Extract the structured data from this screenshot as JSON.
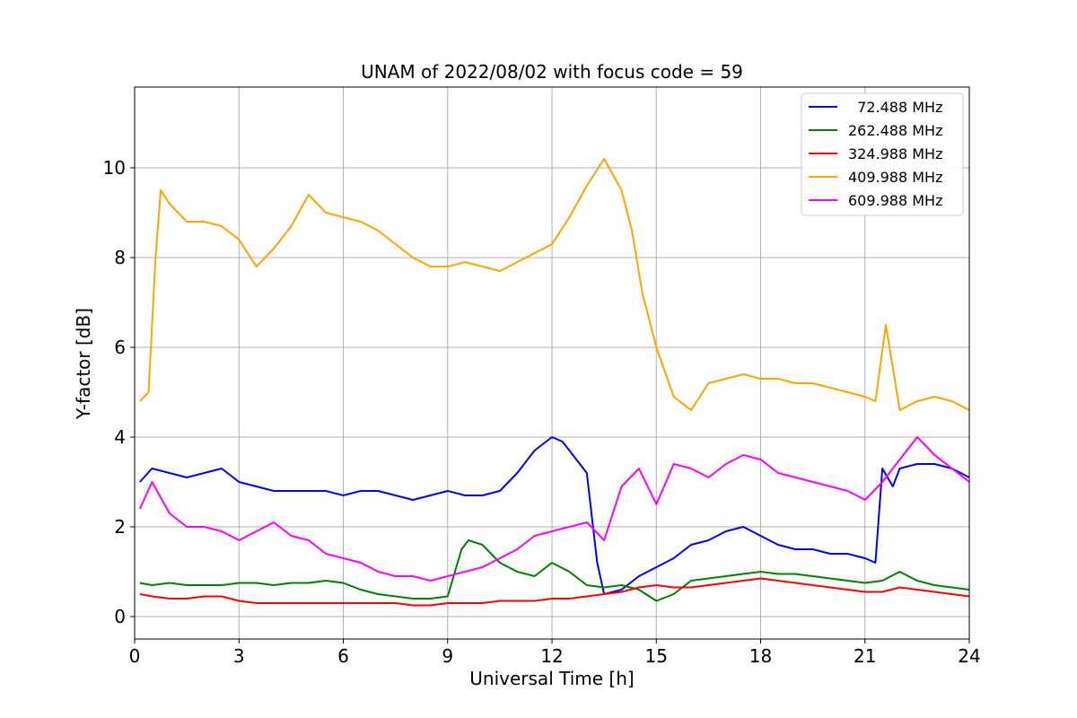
{
  "chart_data": {
    "type": "line",
    "title": "UNAM of 2022/08/02 with focus code = 59",
    "xlabel": "Universal Time [h]",
    "ylabel": "Y-factor [dB]",
    "xlim": [
      0,
      24
    ],
    "ylim": [
      -0.5,
      11.8
    ],
    "xticks": [
      0,
      3,
      6,
      9,
      12,
      15,
      18,
      21,
      24
    ],
    "yticks": [
      0,
      2,
      4,
      6,
      8,
      10
    ],
    "grid": true,
    "legend_position": "top-right",
    "series": [
      {
        "name": "  72.488 MHz",
        "color": "#0000ff",
        "x": [
          0.15,
          0.5,
          1,
          1.5,
          2,
          2.5,
          3,
          3.5,
          4,
          4.5,
          5,
          5.5,
          6,
          6.5,
          7,
          7.5,
          8,
          8.5,
          9,
          9.5,
          10,
          10.5,
          11,
          11.5,
          12,
          12.3,
          12.6,
          13,
          13.3,
          13.5,
          14,
          14.5,
          15,
          15.5,
          16,
          16.5,
          17,
          17.5,
          18,
          18.5,
          19,
          19.5,
          20,
          20.5,
          21,
          21.3,
          21.5,
          21.8,
          22,
          22.5,
          23,
          23.5,
          24
        ],
        "y": [
          3.0,
          3.3,
          3.2,
          3.1,
          3.2,
          3.3,
          3.0,
          2.9,
          2.8,
          2.8,
          2.8,
          2.8,
          2.7,
          2.8,
          2.8,
          2.7,
          2.6,
          2.7,
          2.8,
          2.7,
          2.7,
          2.8,
          3.2,
          3.7,
          4.0,
          3.9,
          3.6,
          3.2,
          1.2,
          0.5,
          0.6,
          0.9,
          1.1,
          1.3,
          1.6,
          1.7,
          1.9,
          2.0,
          1.8,
          1.6,
          1.5,
          1.5,
          1.4,
          1.4,
          1.3,
          1.2,
          3.3,
          2.9,
          3.3,
          3.4,
          3.4,
          3.3,
          3.1
        ]
      },
      {
        "name": "262.488 MHz",
        "color": "#008000",
        "x": [
          0.15,
          0.5,
          1,
          1.5,
          2,
          2.5,
          3,
          3.5,
          4,
          4.5,
          5,
          5.5,
          6,
          6.5,
          7,
          7.5,
          8,
          8.5,
          9,
          9.4,
          9.6,
          10,
          10.5,
          11,
          11.5,
          12,
          12.5,
          13,
          13.5,
          14,
          14.5,
          15,
          15.5,
          16,
          16.5,
          17,
          17.5,
          18,
          18.5,
          19,
          19.5,
          20,
          20.5,
          21,
          21.5,
          22,
          22.5,
          23,
          23.5,
          24
        ],
        "y": [
          0.75,
          0.7,
          0.75,
          0.7,
          0.7,
          0.7,
          0.75,
          0.75,
          0.7,
          0.75,
          0.75,
          0.8,
          0.75,
          0.6,
          0.5,
          0.45,
          0.4,
          0.4,
          0.45,
          1.5,
          1.7,
          1.6,
          1.2,
          1.0,
          0.9,
          1.2,
          1.0,
          0.7,
          0.65,
          0.7,
          0.6,
          0.35,
          0.5,
          0.8,
          0.85,
          0.9,
          0.95,
          1.0,
          0.95,
          0.95,
          0.9,
          0.85,
          0.8,
          0.75,
          0.8,
          1.0,
          0.8,
          0.7,
          0.65,
          0.6
        ]
      },
      {
        "name": "324.988 MHz",
        "color": "#ff0000",
        "x": [
          0.15,
          0.5,
          1,
          1.5,
          2,
          2.5,
          3,
          3.5,
          4,
          4.5,
          5,
          5.5,
          6,
          6.5,
          7,
          7.5,
          8,
          8.5,
          9,
          9.5,
          10,
          10.5,
          11,
          11.5,
          12,
          12.5,
          13,
          13.5,
          14,
          14.5,
          15,
          15.5,
          16,
          16.5,
          17,
          17.5,
          18,
          18.5,
          19,
          19.5,
          20,
          20.5,
          21,
          21.5,
          22,
          22.5,
          23,
          23.5,
          24
        ],
        "y": [
          0.5,
          0.45,
          0.4,
          0.4,
          0.45,
          0.45,
          0.35,
          0.3,
          0.3,
          0.3,
          0.3,
          0.3,
          0.3,
          0.3,
          0.3,
          0.3,
          0.25,
          0.25,
          0.3,
          0.3,
          0.3,
          0.35,
          0.35,
          0.35,
          0.4,
          0.4,
          0.45,
          0.5,
          0.55,
          0.65,
          0.7,
          0.65,
          0.65,
          0.7,
          0.75,
          0.8,
          0.85,
          0.8,
          0.75,
          0.7,
          0.65,
          0.6,
          0.55,
          0.55,
          0.65,
          0.6,
          0.55,
          0.5,
          0.45
        ]
      },
      {
        "name": "409.988 MHz",
        "color": "#ffa500",
        "x": [
          0.15,
          0.4,
          0.6,
          0.75,
          1,
          1.5,
          2,
          2.5,
          3,
          3.5,
          4,
          4.5,
          5,
          5.5,
          6,
          6.5,
          7,
          7.5,
          8,
          8.5,
          9,
          9.5,
          10,
          10.5,
          11,
          11.5,
          12,
          12.5,
          13,
          13.5,
          14,
          14.3,
          14.6,
          15,
          15.5,
          16,
          16.5,
          17,
          17.5,
          18,
          18.5,
          19,
          19.5,
          20,
          20.5,
          21,
          21.3,
          21.6,
          22,
          22.5,
          23,
          23.5,
          24
        ],
        "y": [
          4.8,
          5.0,
          8.0,
          9.5,
          9.2,
          8.8,
          8.8,
          8.7,
          8.4,
          7.8,
          8.2,
          8.7,
          9.4,
          9.0,
          8.9,
          8.8,
          8.6,
          8.3,
          8.0,
          7.8,
          7.8,
          7.9,
          7.8,
          7.7,
          7.9,
          8.1,
          8.3,
          8.9,
          9.6,
          10.2,
          9.5,
          8.6,
          7.2,
          6.0,
          4.9,
          4.6,
          5.2,
          5.3,
          5.4,
          5.3,
          5.3,
          5.2,
          5.2,
          5.1,
          5.0,
          4.9,
          4.8,
          6.5,
          4.6,
          4.8,
          4.9,
          4.8,
          4.6
        ]
      },
      {
        "name": "609.988 MHz",
        "color": "#ff00ff",
        "x": [
          0.15,
          0.5,
          1,
          1.5,
          2,
          2.5,
          3,
          3.5,
          4,
          4.5,
          5,
          5.5,
          6,
          6.5,
          7,
          7.5,
          8,
          8.5,
          9,
          9.5,
          10,
          10.5,
          11,
          11.5,
          12,
          12.5,
          13,
          13.5,
          14,
          14.5,
          15,
          15.5,
          16,
          16.5,
          17,
          17.5,
          18,
          18.5,
          19,
          19.5,
          20,
          20.5,
          21,
          21.5,
          22,
          22.5,
          23,
          23.5,
          24
        ],
        "y": [
          2.4,
          3.0,
          2.3,
          2.0,
          2.0,
          1.9,
          1.7,
          1.9,
          2.1,
          1.8,
          1.7,
          1.4,
          1.3,
          1.2,
          1.0,
          0.9,
          0.9,
          0.8,
          0.9,
          1.0,
          1.1,
          1.3,
          1.5,
          1.8,
          1.9,
          2.0,
          2.1,
          1.7,
          2.9,
          3.3,
          2.5,
          3.4,
          3.3,
          3.1,
          3.4,
          3.6,
          3.5,
          3.2,
          3.1,
          3.0,
          2.9,
          2.8,
          2.6,
          3.0,
          3.5,
          4.0,
          3.6,
          3.3,
          3.0
        ]
      }
    ]
  }
}
